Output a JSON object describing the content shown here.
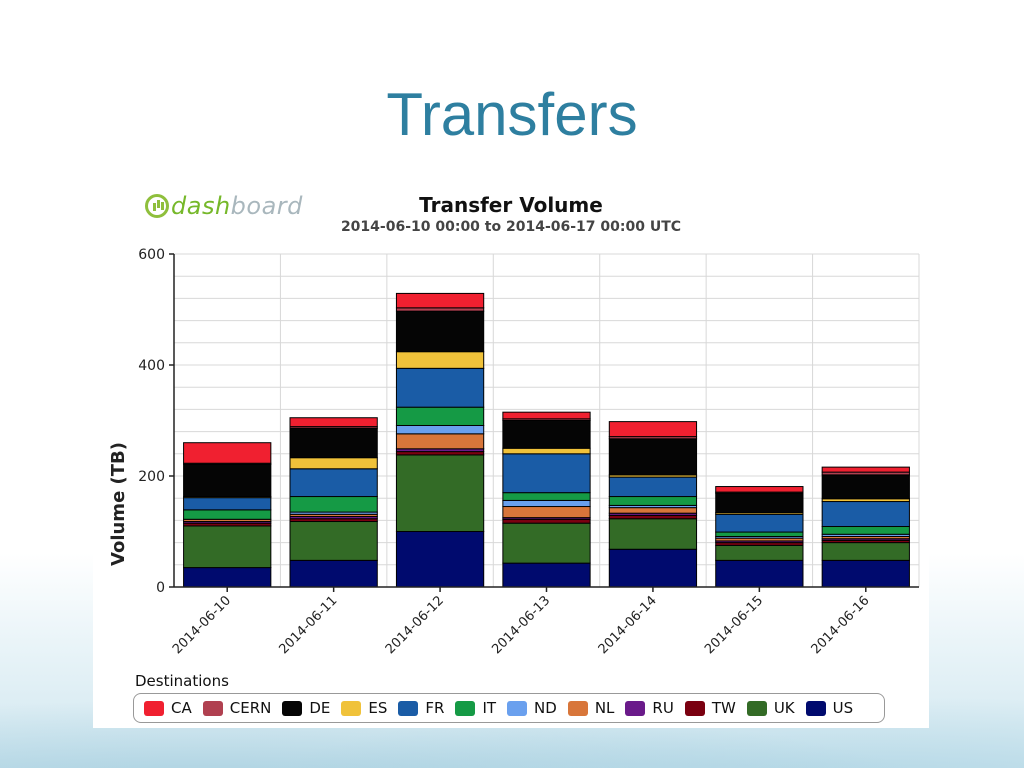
{
  "slide": {
    "title": "Transfers"
  },
  "logo": {
    "part1": "dash",
    "part2": "board",
    "icon": "dashboard-logo-icon"
  },
  "chart_data": {
    "type": "bar",
    "stacked": true,
    "title": "Transfer Volume",
    "subtitle": "2014-06-10 00:00 to 2014-06-17 00:00 UTC",
    "xlabel": "",
    "ylabel": "Volume (TB)",
    "ylim": [
      0,
      600
    ],
    "yticks": [
      0,
      200,
      400,
      600
    ],
    "grid": true,
    "legend_title": "Destinations",
    "legend_position": "bottom",
    "categories": [
      "2014-06-10",
      "2014-06-11",
      "2014-06-12",
      "2014-06-13",
      "2014-06-14",
      "2014-06-15",
      "2014-06-16"
    ],
    "series": [
      {
        "name": "US",
        "color": "#000a6e",
        "values": [
          35,
          48,
          100,
          43,
          68,
          48,
          48
        ]
      },
      {
        "name": "UK",
        "color": "#336b26",
        "values": [
          75,
          70,
          138,
          72,
          55,
          27,
          32
        ]
      },
      {
        "name": "TW",
        "color": "#7a0010",
        "values": [
          5,
          5,
          6,
          7,
          6,
          5,
          4
        ]
      },
      {
        "name": "RU",
        "color": "#6a1a8a",
        "values": [
          3,
          4,
          5,
          3,
          4,
          3,
          3
        ]
      },
      {
        "name": "NL",
        "color": "#d8763a",
        "values": [
          4,
          4,
          27,
          20,
          10,
          5,
          4
        ]
      },
      {
        "name": "ND",
        "color": "#6aa0ee",
        "values": [
          0,
          4,
          15,
          11,
          4,
          3,
          4
        ]
      },
      {
        "name": "IT",
        "color": "#159a45",
        "values": [
          17,
          28,
          33,
          14,
          16,
          8,
          14
        ]
      },
      {
        "name": "FR",
        "color": "#1a5ca6",
        "values": [
          22,
          50,
          70,
          70,
          35,
          32,
          45
        ]
      },
      {
        "name": "ES",
        "color": "#f0c23a",
        "values": [
          2,
          20,
          30,
          10,
          4,
          3,
          5
        ]
      },
      {
        "name": "DE",
        "color": "#050505",
        "values": [
          58,
          53,
          73,
          50,
          65,
          35,
          43
        ]
      },
      {
        "name": "CERN",
        "color": "#b04050",
        "values": [
          2,
          3,
          6,
          3,
          4,
          2,
          5
        ]
      },
      {
        "name": "CA",
        "color": "#f02030",
        "values": [
          37,
          16,
          26,
          12,
          27,
          10,
          9
        ]
      }
    ]
  },
  "legend_order": [
    "CA",
    "CERN",
    "DE",
    "ES",
    "FR",
    "IT",
    "ND",
    "NL",
    "RU",
    "TW",
    "UK",
    "US"
  ]
}
